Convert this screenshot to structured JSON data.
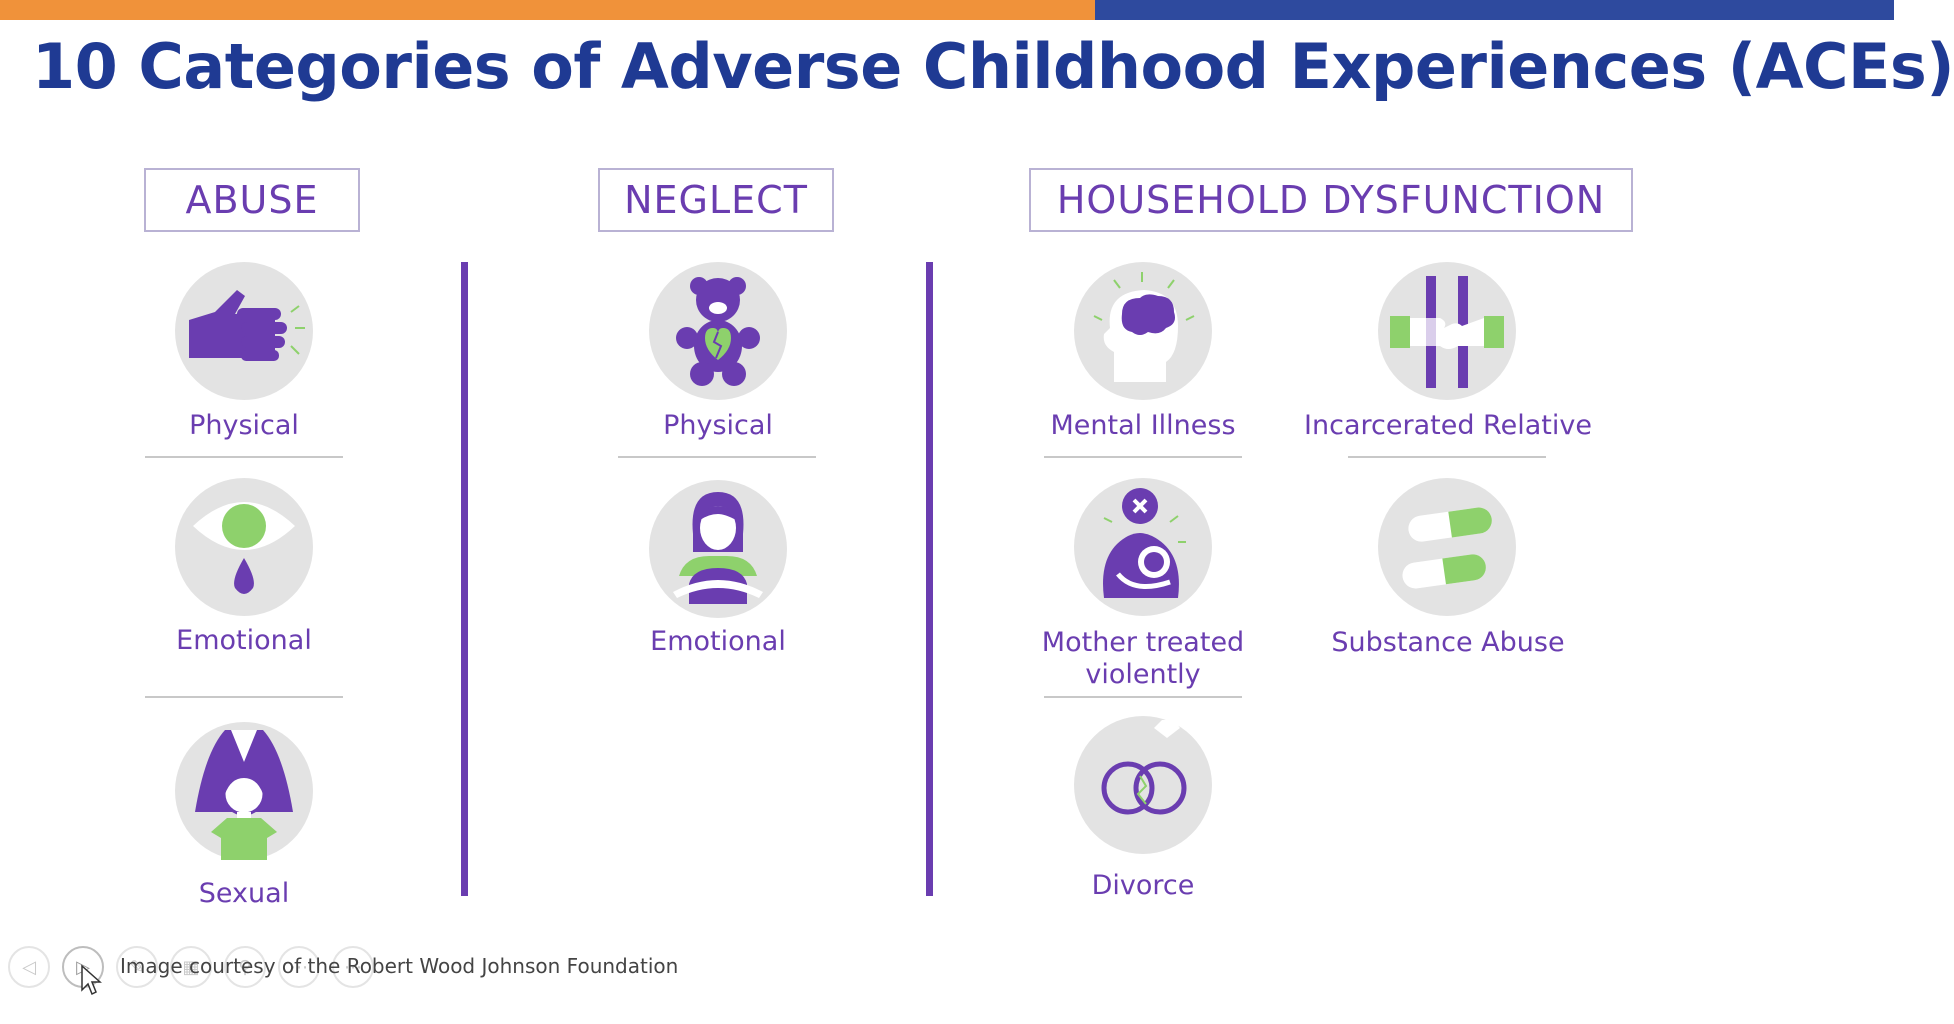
{
  "colors": {
    "bar_orange": "#F0923A",
    "bar_blue": "#2E4A9E",
    "title": "#1F3A93",
    "purple": "#6A3DB0",
    "green": "#8ED16C",
    "circle": "#E3E3E3"
  },
  "title": "10 Categories of Adverse Childhood Experiences (ACEs)",
  "headers": {
    "abuse": "ABUSE",
    "neglect": "NEGLECT",
    "household": "HOUSEHOLD DYSFUNCTION"
  },
  "abuse": {
    "physical": {
      "label": "Physical",
      "icon": "fist-icon"
    },
    "emotional": {
      "label": "Emotional",
      "icon": "teardrop-eye-icon"
    },
    "sexual": {
      "label": "Sexual",
      "icon": "shadow-over-child-icon"
    }
  },
  "neglect": {
    "physical": {
      "label": "Physical",
      "icon": "teddy-bear-icon"
    },
    "emotional": {
      "label": "Emotional",
      "icon": "child-hugging-knees-icon"
    }
  },
  "household": {
    "mental_illness": {
      "label": "Mental Illness",
      "icon": "head-brain-icon"
    },
    "incarcerated": {
      "label": "Incarcerated Relative",
      "icon": "prison-bars-icon"
    },
    "mother": {
      "label_line1": "Mother treated",
      "label_line2": "violently",
      "icon": "injured-mother-icon"
    },
    "substance": {
      "label": "Substance Abuse",
      "icon": "pills-icon"
    },
    "divorce": {
      "label": "Divorce",
      "icon": "broken-rings-icon"
    }
  },
  "footer": {
    "caption": "Image courtesy of the Robert Wood Johnson Foundation",
    "controls": [
      "prev-icon",
      "next-icon",
      "pen-icon",
      "grid-icon",
      "zoom-icon",
      "more-icon",
      "options-icon"
    ]
  }
}
